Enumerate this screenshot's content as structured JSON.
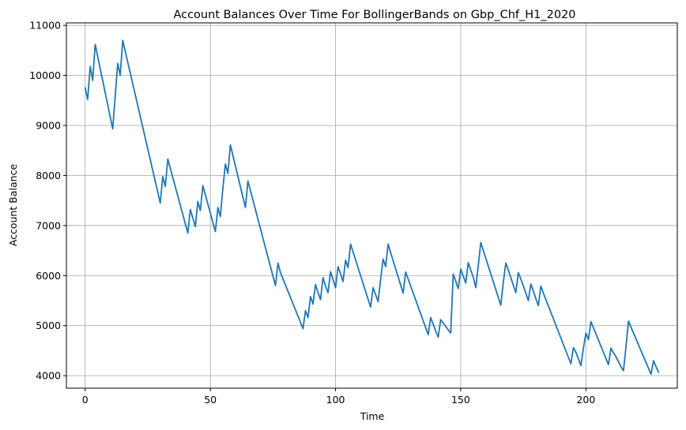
{
  "chart_data": {
    "type": "line",
    "title": "Account Balances Over Time For BollingerBands on Gbp_Chf_H1_2020",
    "xlabel": "Time",
    "ylabel": "Account Balance",
    "xlim": [
      -7.5,
      236.5
    ],
    "ylim": [
      3750,
      11050
    ],
    "xticks": [
      0,
      50,
      100,
      150,
      200
    ],
    "yticks": [
      4000,
      5000,
      6000,
      7000,
      8000,
      9000,
      10000,
      11000
    ],
    "grid": true,
    "legend": "none",
    "color": "#1f77b4",
    "series": [
      {
        "x": [
          0,
          1,
          2,
          3,
          4,
          11,
          13,
          14,
          15,
          30,
          31,
          32,
          33,
          41,
          42,
          44,
          45,
          46,
          47,
          52,
          53,
          54,
          55,
          56,
          57,
          58,
          64,
          65,
          76,
          77,
          78,
          87,
          88,
          89,
          90,
          91,
          92,
          93,
          94,
          95,
          96,
          97,
          98,
          99,
          100,
          101,
          102,
          103,
          104,
          105,
          106,
          114,
          115,
          116,
          117,
          118,
          119,
          120,
          121,
          122,
          127,
          128,
          137,
          138,
          139,
          140,
          141,
          142,
          146,
          147,
          148,
          149,
          150,
          151,
          152,
          153,
          154,
          155,
          156,
          157,
          158,
          166,
          167,
          168,
          169,
          170,
          171,
          172,
          173,
          174,
          175,
          176,
          177,
          178,
          179,
          180,
          181,
          182,
          183,
          194,
          195,
          196,
          197,
          198,
          199,
          200,
          201,
          202,
          209,
          210,
          211,
          212,
          213,
          214,
          215,
          216,
          217,
          218,
          226,
          227,
          228,
          229
        ],
        "y": [
          9750,
          9520,
          10180,
          9900,
          10620,
          8930,
          10240,
          10000,
          10700,
          7450,
          7980,
          7780,
          8330,
          6850,
          7320,
          6980,
          7480,
          7300,
          7800,
          6880,
          7360,
          7180,
          7750,
          8230,
          8040,
          8610,
          7360,
          7890,
          5800,
          6250,
          6060,
          4940,
          5300,
          5160,
          5580,
          5430,
          5820,
          5660,
          5520,
          5960,
          5790,
          5660,
          6080,
          5920,
          5760,
          6180,
          6040,
          5880,
          6310,
          6160,
          6630,
          5370,
          5760,
          5620,
          5480,
          5920,
          6330,
          6180,
          6630,
          6460,
          5650,
          6070,
          4820,
          5160,
          5030,
          4890,
          4770,
          5120,
          4850,
          6030,
          5890,
          5740,
          6130,
          5990,
          5850,
          6260,
          6110,
          5970,
          5760,
          6200,
          6660,
          5410,
          5860,
          6250,
          6110,
          5960,
          5810,
          5660,
          6060,
          5930,
          5790,
          5650,
          5500,
          5830,
          5690,
          5540,
          5400,
          5790,
          5650,
          4240,
          4560,
          4470,
          4340,
          4200,
          4550,
          4850,
          4720,
          5080,
          4220,
          4550,
          4460,
          4380,
          4280,
          4180,
          4100,
          4580,
          5090,
          4970,
          4030,
          4300,
          4180,
          4070
        ]
      }
    ]
  }
}
